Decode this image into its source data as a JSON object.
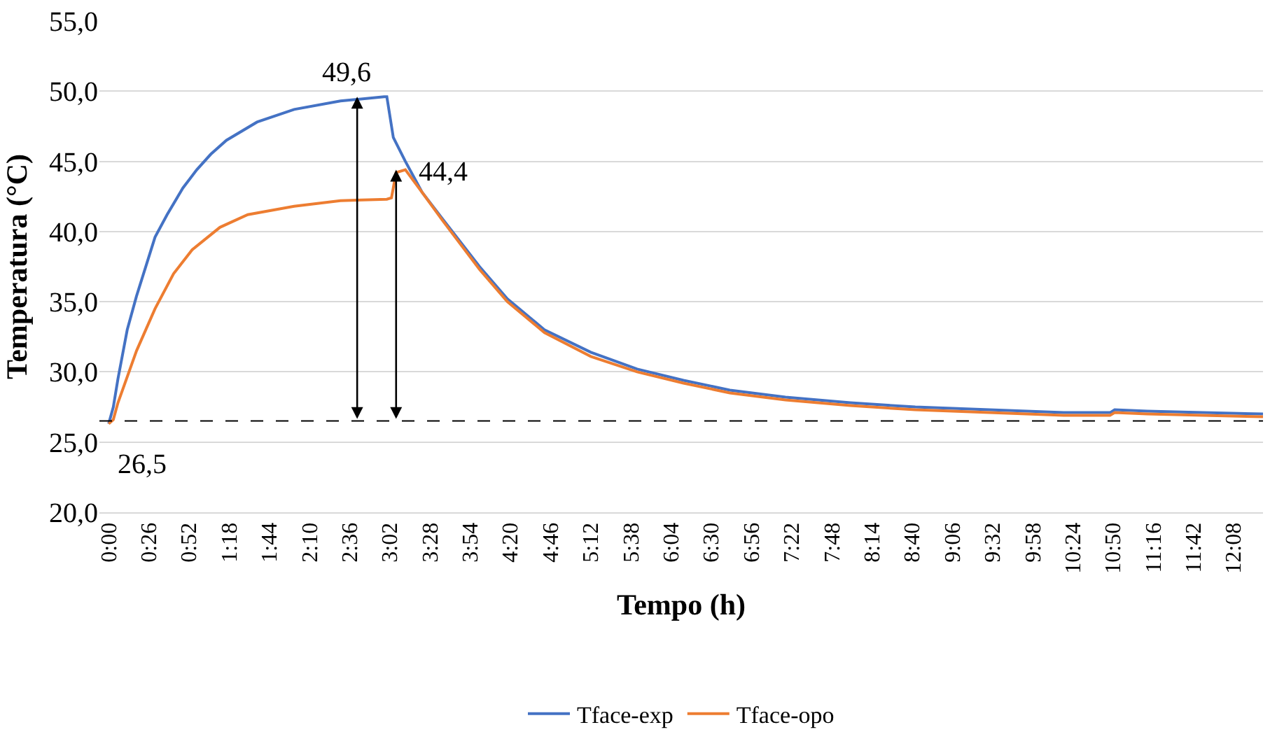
{
  "chart_data": {
    "type": "line",
    "xlabel": "Tempo (h)",
    "ylabel": "Temperatura (°C)",
    "xlim": [
      -0.1,
      12.45
    ],
    "ylim": [
      20,
      55
    ],
    "xticks": [
      {
        "value": 0,
        "label": "0:00"
      },
      {
        "value": 0.4333,
        "label": "0:26"
      },
      {
        "value": 0.8667,
        "label": "0:52"
      },
      {
        "value": 1.3,
        "label": "1:18"
      },
      {
        "value": 1.7333,
        "label": "1:44"
      },
      {
        "value": 2.1667,
        "label": "2:10"
      },
      {
        "value": 2.6,
        "label": "2:36"
      },
      {
        "value": 3.0333,
        "label": "3:02"
      },
      {
        "value": 3.4667,
        "label": "3:28"
      },
      {
        "value": 3.9,
        "label": "3:54"
      },
      {
        "value": 4.3333,
        "label": "4:20"
      },
      {
        "value": 4.7667,
        "label": "4:46"
      },
      {
        "value": 5.2,
        "label": "5:12"
      },
      {
        "value": 5.6333,
        "label": "5:38"
      },
      {
        "value": 6.0667,
        "label": "6:04"
      },
      {
        "value": 6.5,
        "label": "6:30"
      },
      {
        "value": 6.9333,
        "label": "6:56"
      },
      {
        "value": 7.3667,
        "label": "7:22"
      },
      {
        "value": 7.8,
        "label": "7:48"
      },
      {
        "value": 8.2333,
        "label": "8:14"
      },
      {
        "value": 8.6667,
        "label": "8:40"
      },
      {
        "value": 9.1,
        "label": "9:06"
      },
      {
        "value": 9.5333,
        "label": "9:32"
      },
      {
        "value": 9.9667,
        "label": "9:58"
      },
      {
        "value": 10.4,
        "label": "10:24"
      },
      {
        "value": 10.8333,
        "label": "10:50"
      },
      {
        "value": 11.2667,
        "label": "11:16"
      },
      {
        "value": 11.7,
        "label": "11:42"
      },
      {
        "value": 12.1333,
        "label": "12:08"
      }
    ],
    "yticks": [
      {
        "value": 20,
        "label": "20,0"
      },
      {
        "value": 25,
        "label": "25,0"
      },
      {
        "value": 30,
        "label": "30,0"
      },
      {
        "value": 35,
        "label": "35,0"
      },
      {
        "value": 40,
        "label": "40,0"
      },
      {
        "value": 45,
        "label": "45,0"
      },
      {
        "value": 50,
        "label": "50,0"
      },
      {
        "value": 55,
        "label": "55,0"
      }
    ],
    "grid": "y",
    "legend": "bottom",
    "marker": "none",
    "line_style": "solid",
    "series": [
      {
        "name": "Tface-exp",
        "color": "#4472c4",
        "x": [
          0,
          0.05,
          0.1,
          0.2,
          0.3,
          0.5,
          0.63,
          0.8,
          0.95,
          1.1,
          1.27,
          1.6,
          2.0,
          2.5,
          2.97,
          3.0,
          3.07,
          3.2,
          3.38,
          3.6,
          4.0,
          4.3,
          4.7,
          5.2,
          5.7,
          6.2,
          6.7,
          7.3,
          8.0,
          8.7,
          9.5,
          10.3,
          10.8,
          10.85,
          11.2,
          11.8,
          12.45
        ],
        "values": [
          26.3,
          27.5,
          29.5,
          33.0,
          35.4,
          39.6,
          41.2,
          43.1,
          44.4,
          45.5,
          46.5,
          47.8,
          48.7,
          49.3,
          49.6,
          49.6,
          46.7,
          45.0,
          42.8,
          40.9,
          37.5,
          35.2,
          33.0,
          31.4,
          30.2,
          29.4,
          28.7,
          28.2,
          27.8,
          27.5,
          27.3,
          27.1,
          27.1,
          27.3,
          27.2,
          27.1,
          27.0
        ]
      },
      {
        "name": "Tface-opo",
        "color": "#ed7d31",
        "x": [
          0,
          0.05,
          0.1,
          0.3,
          0.5,
          0.7,
          0.9,
          1.2,
          1.5,
          2.0,
          2.5,
          3.0,
          3.05,
          3.1,
          3.2,
          3.38,
          3.6,
          4.0,
          4.3,
          4.7,
          5.2,
          5.7,
          6.2,
          6.7,
          7.3,
          8.0,
          8.7,
          9.5,
          10.3,
          10.8,
          10.85,
          11.2,
          11.8,
          12.45
        ],
        "values": [
          26.3,
          26.6,
          27.8,
          31.5,
          34.5,
          37.0,
          38.7,
          40.3,
          41.2,
          41.8,
          42.2,
          42.3,
          42.4,
          44.2,
          44.4,
          42.8,
          40.8,
          37.3,
          35.0,
          32.8,
          31.1,
          30.0,
          29.2,
          28.5,
          28.0,
          27.6,
          27.3,
          27.1,
          26.9,
          26.9,
          27.1,
          27.0,
          26.9,
          26.8
        ]
      }
    ],
    "ref_lines": [
      {
        "axis": "y",
        "value": 26.5,
        "color": "#000000",
        "line_style": "dashed"
      }
    ],
    "annotations": [
      {
        "text": "49,6",
        "x": 2.68,
        "y": 49.6
      },
      {
        "text": "44,4",
        "x": 3.1,
        "y": 44.4
      },
      {
        "text": "26,5",
        "x": 0,
        "y": 26.5
      }
    ]
  }
}
